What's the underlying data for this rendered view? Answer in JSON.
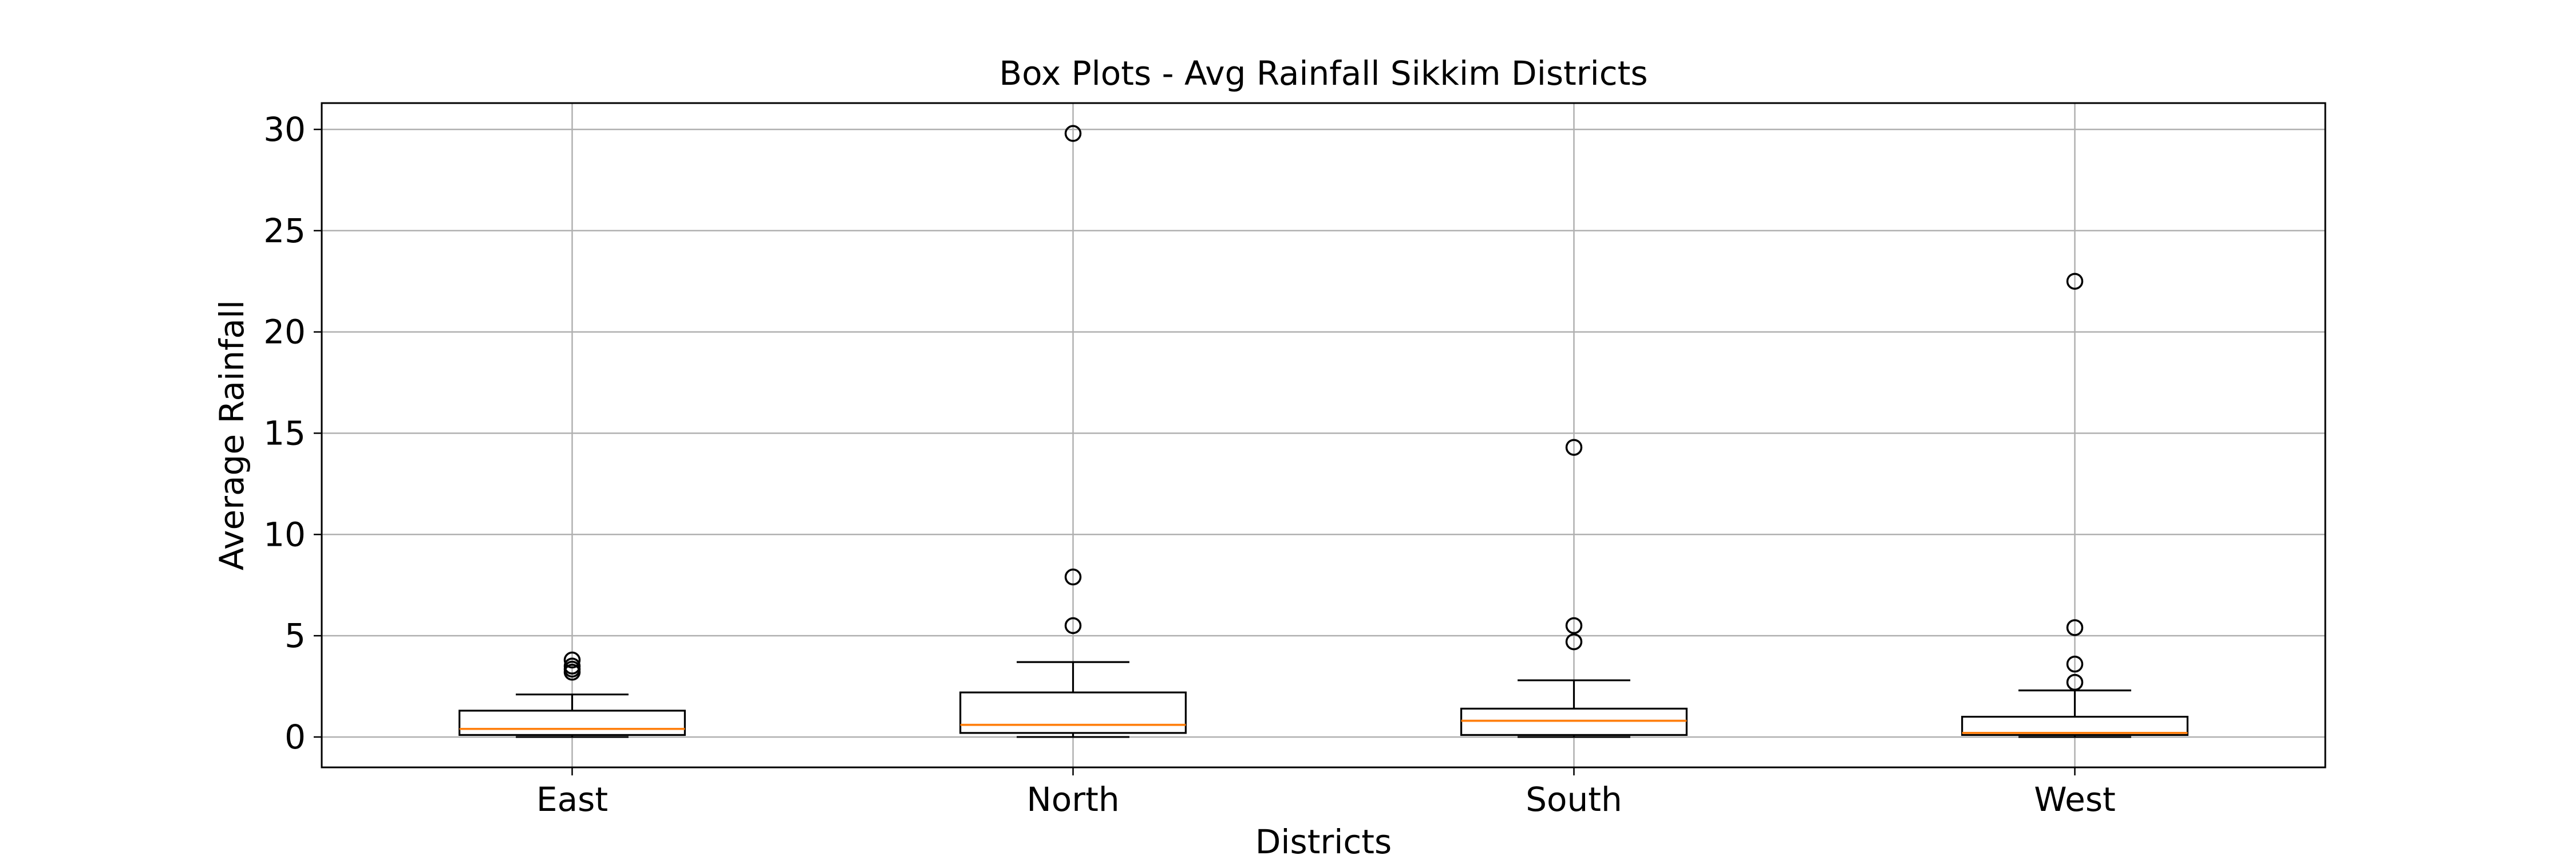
{
  "chart_data": {
    "type": "boxplot",
    "title": "Box Plots - Avg Rainfall Sikkim Districts",
    "xlabel": "Districts",
    "ylabel": "Average Rainfall",
    "ylim": [
      -1.5,
      31.3
    ],
    "yticks": [
      0,
      5,
      10,
      15,
      20,
      25,
      30
    ],
    "grid": true,
    "colors": {
      "box": "#000000",
      "median": "#ff7f0e",
      "grid": "#b0b0b0"
    },
    "categories": [
      "East",
      "North",
      "South",
      "West"
    ],
    "boxes": [
      {
        "name": "East",
        "whisker_low": 0.0,
        "q1": 0.1,
        "median": 0.4,
        "q3": 1.3,
        "whisker_high": 2.1,
        "outliers": [
          3.2,
          3.35,
          3.5,
          3.8
        ]
      },
      {
        "name": "North",
        "whisker_low": 0.0,
        "q1": 0.2,
        "median": 0.6,
        "q3": 2.2,
        "whisker_high": 3.7,
        "outliers": [
          5.5,
          7.9,
          29.8
        ]
      },
      {
        "name": "South",
        "whisker_low": 0.0,
        "q1": 0.1,
        "median": 0.8,
        "q3": 1.4,
        "whisker_high": 2.8,
        "outliers": [
          4.7,
          5.5,
          14.3
        ]
      },
      {
        "name": "West",
        "whisker_low": 0.0,
        "q1": 0.1,
        "median": 0.2,
        "q3": 1.0,
        "whisker_high": 2.3,
        "outliers": [
          2.7,
          3.6,
          5.4,
          22.5
        ]
      }
    ]
  }
}
